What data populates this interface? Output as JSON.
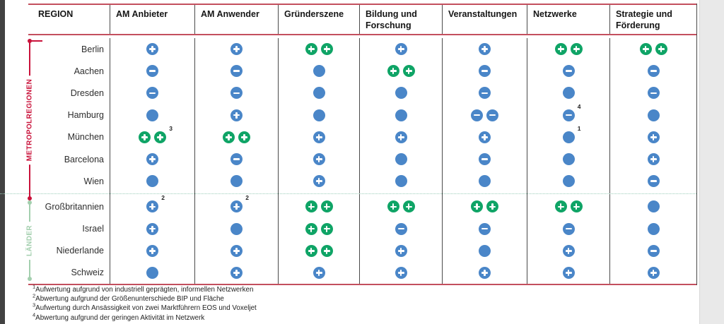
{
  "colors": {
    "blue": "#4a86c8",
    "green": "#0fa466",
    "metropol_red": "#c9123a",
    "laender_green": "#a3cfae",
    "border_red": "#c34f5e",
    "grid_line": "#4a4a4a",
    "separator_dot": "#9ccdb9"
  },
  "table": {
    "columns": [
      "REGION",
      "AM Anbieter",
      "AM Anwender",
      "Gründerszene",
      "Bildung und Forschung",
      "Veranstaltungen",
      "Netzwerke",
      "Strategie und Förderung"
    ],
    "cell_legend": {
      "blue+": "blue circle with plus (positive)",
      "blue-": "blue circle with minus (negative)",
      "blue": "plain blue circle (neutral)",
      "green+": "green circle with plus (strong positive)",
      "^n": "footnote reference number"
    },
    "groups": [
      {
        "label": "METROPOLREGIONEN",
        "rows": [
          {
            "region": "Berlin",
            "cells": [
              "blue+",
              "blue+",
              "green+ green+",
              "blue+",
              "blue+",
              "green+ green+",
              "green+ green+"
            ]
          },
          {
            "region": "Aachen",
            "cells": [
              "blue-",
              "blue-",
              "blue",
              "green+ green+",
              "blue-",
              "blue-",
              "blue-"
            ]
          },
          {
            "region": "Dresden",
            "cells": [
              "blue-",
              "blue-",
              "blue",
              "blue",
              "blue-",
              "blue",
              "blue-"
            ]
          },
          {
            "region": "Hamburg",
            "cells": [
              "blue",
              "blue+",
              "blue",
              "blue",
              "blue- blue-",
              "blue- ^4",
              "blue"
            ]
          },
          {
            "region": "München",
            "cells": [
              "green+ green+ ^3",
              "green+ green+",
              "blue+",
              "blue+",
              "blue+",
              "blue ^1",
              "blue+"
            ]
          },
          {
            "region": "Barcelona",
            "cells": [
              "blue+",
              "blue-",
              "blue+",
              "blue",
              "blue-",
              "blue",
              "blue+"
            ]
          },
          {
            "region": "Wien",
            "cells": [
              "blue",
              "blue",
              "blue+",
              "blue",
              "blue",
              "blue",
              "blue-"
            ]
          }
        ]
      },
      {
        "label": "LÄNDER",
        "rows": [
          {
            "region": "Großbritannien",
            "cells": [
              "blue+ ^2",
              "blue+ ^2",
              "green+ green+",
              "green+ green+",
              "green+ green+",
              "green+ green+",
              "blue"
            ]
          },
          {
            "region": "Israel",
            "cells": [
              "blue+",
              "blue",
              "green+ green+",
              "blue-",
              "blue-",
              "blue-",
              "blue"
            ]
          },
          {
            "region": "Niederlande",
            "cells": [
              "blue+",
              "blue+",
              "green+ green+",
              "blue+",
              "blue",
              "blue+",
              "blue-"
            ]
          },
          {
            "region": "Schweiz",
            "cells": [
              "blue",
              "blue+",
              "blue+",
              "blue+",
              "blue+",
              "blue+",
              "blue+"
            ]
          }
        ]
      }
    ]
  },
  "footnotes": [
    {
      "sup": "1",
      "text": "Aufwertung aufgrund von industriell geprägten, informellen Netzwerken"
    },
    {
      "sup": "2",
      "text": "Abwertung aufgrund der Größenunterschiede BIP und Fläche"
    },
    {
      "sup": "3",
      "text": "Aufwertung durch Ansässigkeit von zwei Marktführern EOS und Voxeljet"
    },
    {
      "sup": "4",
      "text": "Abwertung aufgrund der geringen Aktivität im Netzwerk"
    }
  ]
}
